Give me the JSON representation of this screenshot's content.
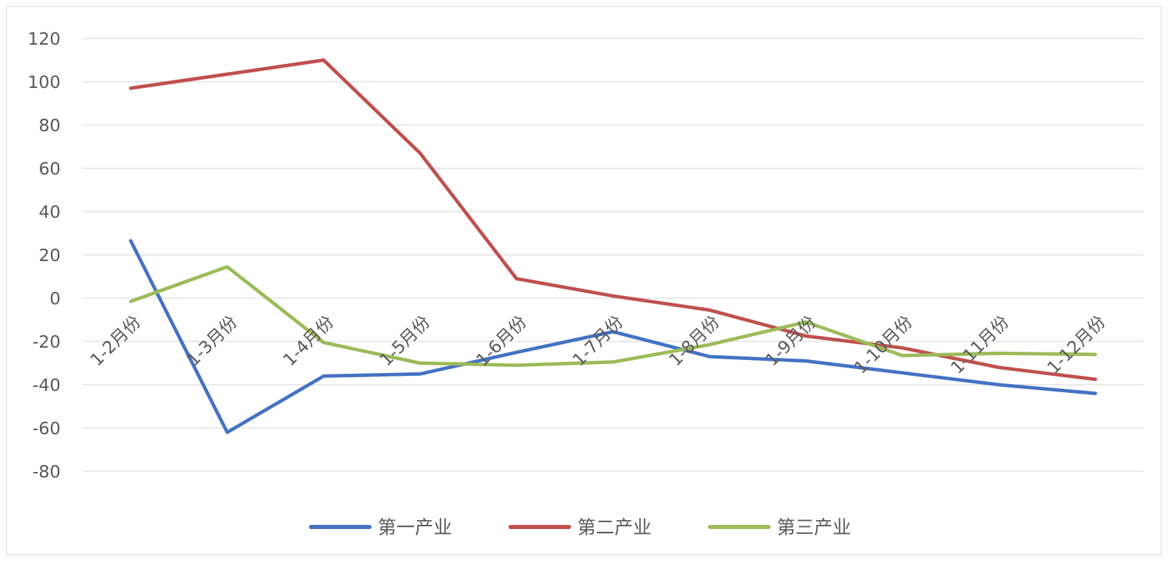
{
  "chart_data": {
    "type": "line",
    "title": "",
    "xlabel": "",
    "ylabel": "",
    "categories": [
      "1-2月份",
      "1-3月份",
      "1-4月份",
      "1-5月份",
      "1-6月份",
      "1-7月份",
      "1-8月份",
      "1-9月份",
      "1-10月份",
      "1-11月份",
      "1-12月份"
    ],
    "ylim": [
      -80,
      120
    ],
    "yticks": [
      120,
      100,
      80,
      60,
      40,
      20,
      0,
      -20,
      -40,
      -60,
      -80
    ],
    "grid": true,
    "legend_position": "bottom",
    "series": [
      {
        "name": "第一产业",
        "color": "#4472c4",
        "values": [
          26.5,
          -62,
          -36,
          -35,
          -25,
          -15.5,
          -27,
          -29,
          -34.5,
          -40,
          -44
        ]
      },
      {
        "name": "第二产业",
        "color": "#c0504d",
        "values": [
          97,
          103.5,
          110,
          67,
          9,
          1,
          -5.5,
          -17.5,
          -23,
          -32,
          -37.5
        ]
      },
      {
        "name": "第三产业",
        "color": "#9bbb59",
        "values": [
          -1.5,
          14.5,
          -20.5,
          -30,
          -31,
          -29.5,
          -21.5,
          -11,
          -26.5,
          -25.5,
          -26
        ]
      }
    ]
  }
}
